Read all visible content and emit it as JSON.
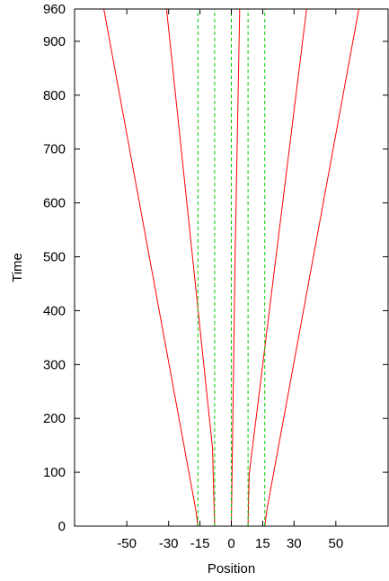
{
  "chart_data": {
    "type": "line",
    "title": "",
    "xlabel": "Position",
    "ylabel": "Time",
    "xlim": [
      -75,
      75
    ],
    "ylim": [
      0,
      960
    ],
    "x_ticks": [
      -50,
      -30,
      -15,
      0,
      15,
      30,
      50
    ],
    "x_tick_labels": [
      "-50",
      "-30",
      "-15",
      "0",
      "15",
      "30",
      "50"
    ],
    "y_ticks": [
      0,
      100,
      200,
      300,
      400,
      500,
      600,
      700,
      800,
      900,
      960
    ],
    "y_tick_labels": [
      "0",
      "100",
      "200",
      "300",
      "400",
      "500",
      "600",
      "700",
      "800",
      "900",
      "960"
    ],
    "grid": false,
    "legend": "none",
    "colors": {
      "trajectory": "#ff0000",
      "reference": "#00cc00",
      "frame": "#000000"
    },
    "series": [
      {
        "style": "solid",
        "color": "#ff0000",
        "lines": [
          {
            "x": [
              -16,
              -17,
              -61
            ],
            "y": [
              0,
              30,
              960
            ]
          },
          {
            "x": [
              -8,
              -9,
              -31
            ],
            "y": [
              0,
              145,
              960
            ]
          },
          {
            "x": [
              0,
              1.8,
              4
            ],
            "y": [
              0,
              500,
              960
            ]
          },
          {
            "x": [
              8,
              8.5,
              36
            ],
            "y": [
              0,
              95,
              960
            ]
          },
          {
            "x": [
              16,
              17,
              61
            ],
            "y": [
              0,
              30,
              960
            ]
          }
        ]
      },
      {
        "style": "dashed",
        "color": "#00cc00",
        "lines": [
          {
            "x": [
              -16,
              -16
            ],
            "y": [
              0,
              960
            ]
          },
          {
            "x": [
              -8,
              -8
            ],
            "y": [
              0,
              960
            ]
          },
          {
            "x": [
              0,
              0
            ],
            "y": [
              0,
              960
            ]
          },
          {
            "x": [
              8,
              8
            ],
            "y": [
              0,
              960
            ]
          },
          {
            "x": [
              16,
              16
            ],
            "y": [
              0,
              960
            ]
          }
        ]
      }
    ]
  }
}
